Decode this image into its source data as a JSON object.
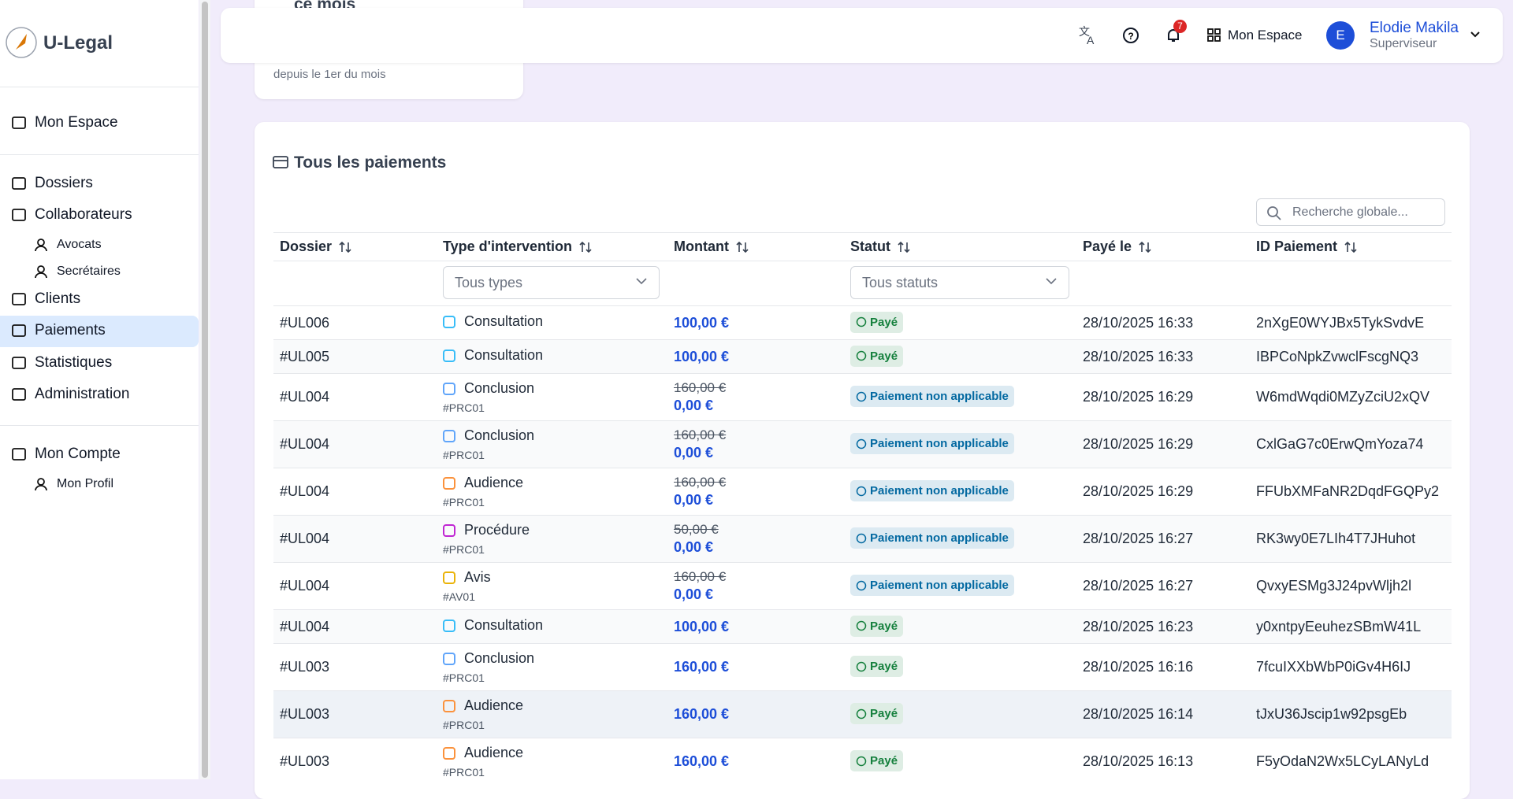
{
  "sidebar": {
    "brand": "U-Legal",
    "items": [
      {
        "label": "Mon Espace",
        "level": 0
      },
      {
        "label": "Dossiers",
        "level": 0
      },
      {
        "label": "Collaborateurs",
        "level": 0
      },
      {
        "label": "Avocats",
        "level": 1
      },
      {
        "label": "Secrétaires",
        "level": 1
      },
      {
        "label": "Clients",
        "level": 0
      },
      {
        "label": "Paiements",
        "level": 0,
        "active": true
      },
      {
        "label": "Statistiques",
        "level": 0
      },
      {
        "label": "Administration",
        "level": 0
      },
      {
        "label": "Mon Compte",
        "level": 0
      },
      {
        "label": "Mon Profil",
        "level": 1
      }
    ]
  },
  "topbar": {
    "notifications": "7",
    "space": "Mon Espace",
    "avatar": "E",
    "user": "Elodie Makila",
    "role": "Superviseur"
  },
  "stat_card": {
    "title": "ce mois",
    "note": "depuis le 1er du mois"
  },
  "table": {
    "title": "Tous les paiements",
    "search": "Recherche globale...",
    "columns": [
      "Dossier",
      "Type d'intervention",
      "Montant",
      "Statut",
      "Payé le",
      "ID Paiement"
    ],
    "filters": {
      "type": "Tous types",
      "status": "Tous statuts"
    },
    "rows": [
      {
        "dossier": "#UL006",
        "type": "Consultation",
        "color": "#38bdf8",
        "amount": "100,00 €",
        "status": "Payé",
        "status_color": "#15803d",
        "date": "28/10/2025 16:33",
        "id": "2nXgE0WYJBx5TykSvdvE"
      },
      {
        "dossier": "#UL005",
        "type": "Consultation",
        "color": "#38bdf8",
        "amount": "100,00 €",
        "status": "Payé",
        "status_color": "#15803d",
        "date": "28/10/2025 16:33",
        "id": "IBPCoNpkZvwclFscgNQ3"
      },
      {
        "dossier": "#UL004",
        "type": "Conclusion",
        "ref": "#PRC01",
        "color": "#60a5fa",
        "old_amount": "160,00 €",
        "amount": "0,00 €",
        "status": "Paiement non applicable",
        "status_color": "#0369a1",
        "date": "28/10/2025 16:29",
        "id": "W6mdWqdi0MZyZciU2xQV"
      },
      {
        "dossier": "#UL004",
        "type": "Conclusion",
        "ref": "#PRC01",
        "color": "#60a5fa",
        "old_amount": "160,00 €",
        "amount": "0,00 €",
        "status": "Paiement non applicable",
        "status_color": "#0369a1",
        "date": "28/10/2025 16:29",
        "id": "CxlGaG7c0ErwQmYoza74"
      },
      {
        "dossier": "#UL004",
        "type": "Audience",
        "ref": "#PRC01",
        "color": "#fb923c",
        "old_amount": "160,00 €",
        "amount": "0,00 €",
        "status": "Paiement non applicable",
        "status_color": "#0369a1",
        "date": "28/10/2025 16:29",
        "id": "FFUbXMFaNR2DqdFGQPy2"
      },
      {
        "dossier": "#UL004",
        "type": "Procédure",
        "ref": "#PRC01",
        "color": "#c026d3",
        "old_amount": "50,00 €",
        "amount": "0,00 €",
        "status": "Paiement non applicable",
        "status_color": "#0369a1",
        "date": "28/10/2025 16:27",
        "id": "RK3wy0E7LIh4T7JHuhot"
      },
      {
        "dossier": "#UL004",
        "type": "Avis",
        "ref": "#AV01",
        "color": "#eab308",
        "old_amount": "160,00 €",
        "amount": "0,00 €",
        "status": "Paiement non applicable",
        "status_color": "#0369a1",
        "date": "28/10/2025 16:27",
        "id": "QvxyESMg3J24pvWljh2l"
      },
      {
        "dossier": "#UL004",
        "type": "Consultation",
        "color": "#38bdf8",
        "amount": "100,00 €",
        "status": "Payé",
        "status_color": "#15803d",
        "date": "28/10/2025 16:23",
        "id": "y0xntpyEeuhezSBmW41L"
      },
      {
        "dossier": "#UL003",
        "type": "Conclusion",
        "ref": "#PRC01",
        "color": "#60a5fa",
        "amount": "160,00 €",
        "status": "Payé",
        "status_color": "#15803d",
        "date": "28/10/2025 16:16",
        "id": "7fcuIXXbWbP0iGv4H6IJ"
      },
      {
        "dossier": "#UL003",
        "type": "Audience",
        "ref": "#PRC01",
        "color": "#fb923c",
        "amount": "160,00 €",
        "status": "Payé",
        "status_color": "#15803d",
        "date": "28/10/2025 16:14",
        "id": "tJxU36Jscip1w92psgEb",
        "hover": true
      },
      {
        "dossier": "#UL003",
        "type": "Audience",
        "ref": "#PRC01",
        "color": "#fb923c",
        "amount": "160,00 €",
        "status": "Payé",
        "status_color": "#15803d",
        "date": "28/10/2025 16:13",
        "id": "F5yOdaN2Wx5LCyLANyLd"
      }
    ]
  }
}
